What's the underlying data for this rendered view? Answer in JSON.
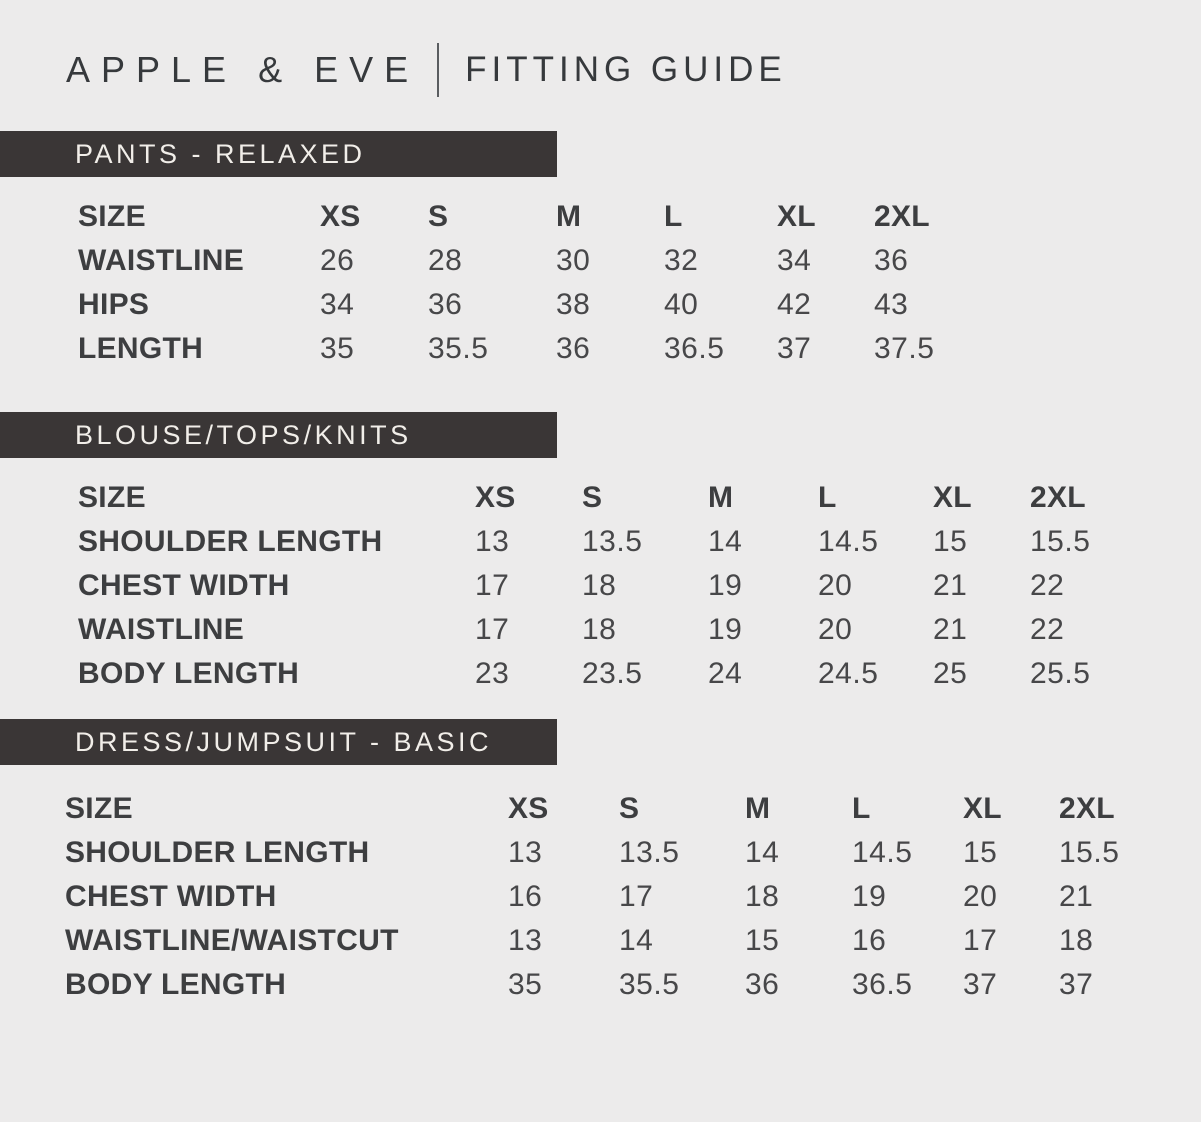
{
  "theme": {
    "page_bg": "#ECEBEB",
    "bar_bg": "#3A3636",
    "bar_text": "#F1EEE9",
    "header_ink": "#36393C",
    "ink": "#3D3E40",
    "num_ink": "#474749"
  },
  "header": {
    "brand": "APPLE & EVE",
    "title": "FITTING GUIDE"
  },
  "sections": [
    {
      "label": "PANTS - RELAXED",
      "columns": [
        "SIZE",
        "XS",
        "S",
        "M",
        "L",
        "XL",
        "2XL"
      ],
      "rows": [
        {
          "label": "WAISTLINE",
          "values": [
            "26",
            "28",
            "30",
            "32",
            "34",
            "36"
          ]
        },
        {
          "label": "HIPS",
          "values": [
            "34",
            "36",
            "38",
            "40",
            "42",
            "43"
          ]
        },
        {
          "label": "LENGTH",
          "values": [
            "35",
            "35.5",
            "36",
            "36.5",
            "37",
            "37.5"
          ]
        }
      ]
    },
    {
      "label": "BLOUSE/TOPS/KNITS",
      "columns": [
        "SIZE",
        "XS",
        "S",
        "M",
        "L",
        "XL",
        "2XL"
      ],
      "rows": [
        {
          "label": "SHOULDER LENGTH",
          "values": [
            "13",
            "13.5",
            "14",
            "14.5",
            "15",
            "15.5"
          ]
        },
        {
          "label": "CHEST WIDTH",
          "values": [
            "17",
            "18",
            "19",
            "20",
            "21",
            "22"
          ]
        },
        {
          "label": "WAISTLINE",
          "values": [
            "17",
            "18",
            "19",
            "20",
            "21",
            "22"
          ]
        },
        {
          "label": "BODY LENGTH",
          "values": [
            "23",
            "23.5",
            "24",
            "24.5",
            "25",
            "25.5"
          ]
        }
      ]
    },
    {
      "label": "DRESS/JUMPSUIT - BASIC",
      "columns": [
        "SIZE",
        "XS",
        "S",
        "M",
        "L",
        "XL",
        "2XL"
      ],
      "rows": [
        {
          "label": "SHOULDER LENGTH",
          "values": [
            "13",
            "13.5",
            "14",
            "14.5",
            "15",
            "15.5"
          ]
        },
        {
          "label": "CHEST WIDTH",
          "values": [
            "16",
            "17",
            "18",
            "19",
            "20",
            "21"
          ]
        },
        {
          "label": "WAISTLINE/WAISTCUT",
          "values": [
            "13",
            "14",
            "15",
            "16",
            "17",
            "18"
          ]
        },
        {
          "label": "BODY LENGTH",
          "values": [
            "35",
            "35.5",
            "36",
            "36.5",
            "37",
            "37"
          ]
        }
      ]
    }
  ]
}
